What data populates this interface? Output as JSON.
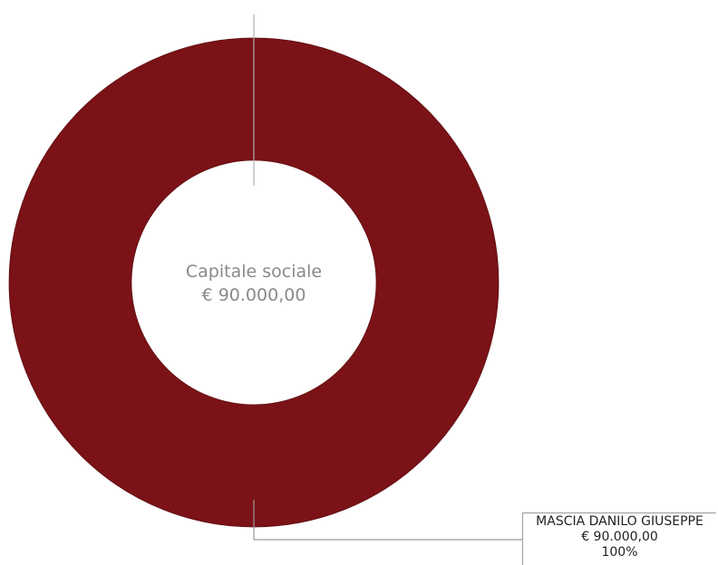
{
  "chart_data": {
    "type": "pie",
    "title": "",
    "center_label": {
      "line1": "Capitale sociale",
      "line2": "€ 90.000,00"
    },
    "slices": [
      {
        "name": "MASCIA DANILO GIUSEPPE",
        "value_label": "€ 90.000,00",
        "value": 90000,
        "percent_label": "100%",
        "percent": 100,
        "color": "#7a1217"
      }
    ],
    "legend": "none"
  }
}
